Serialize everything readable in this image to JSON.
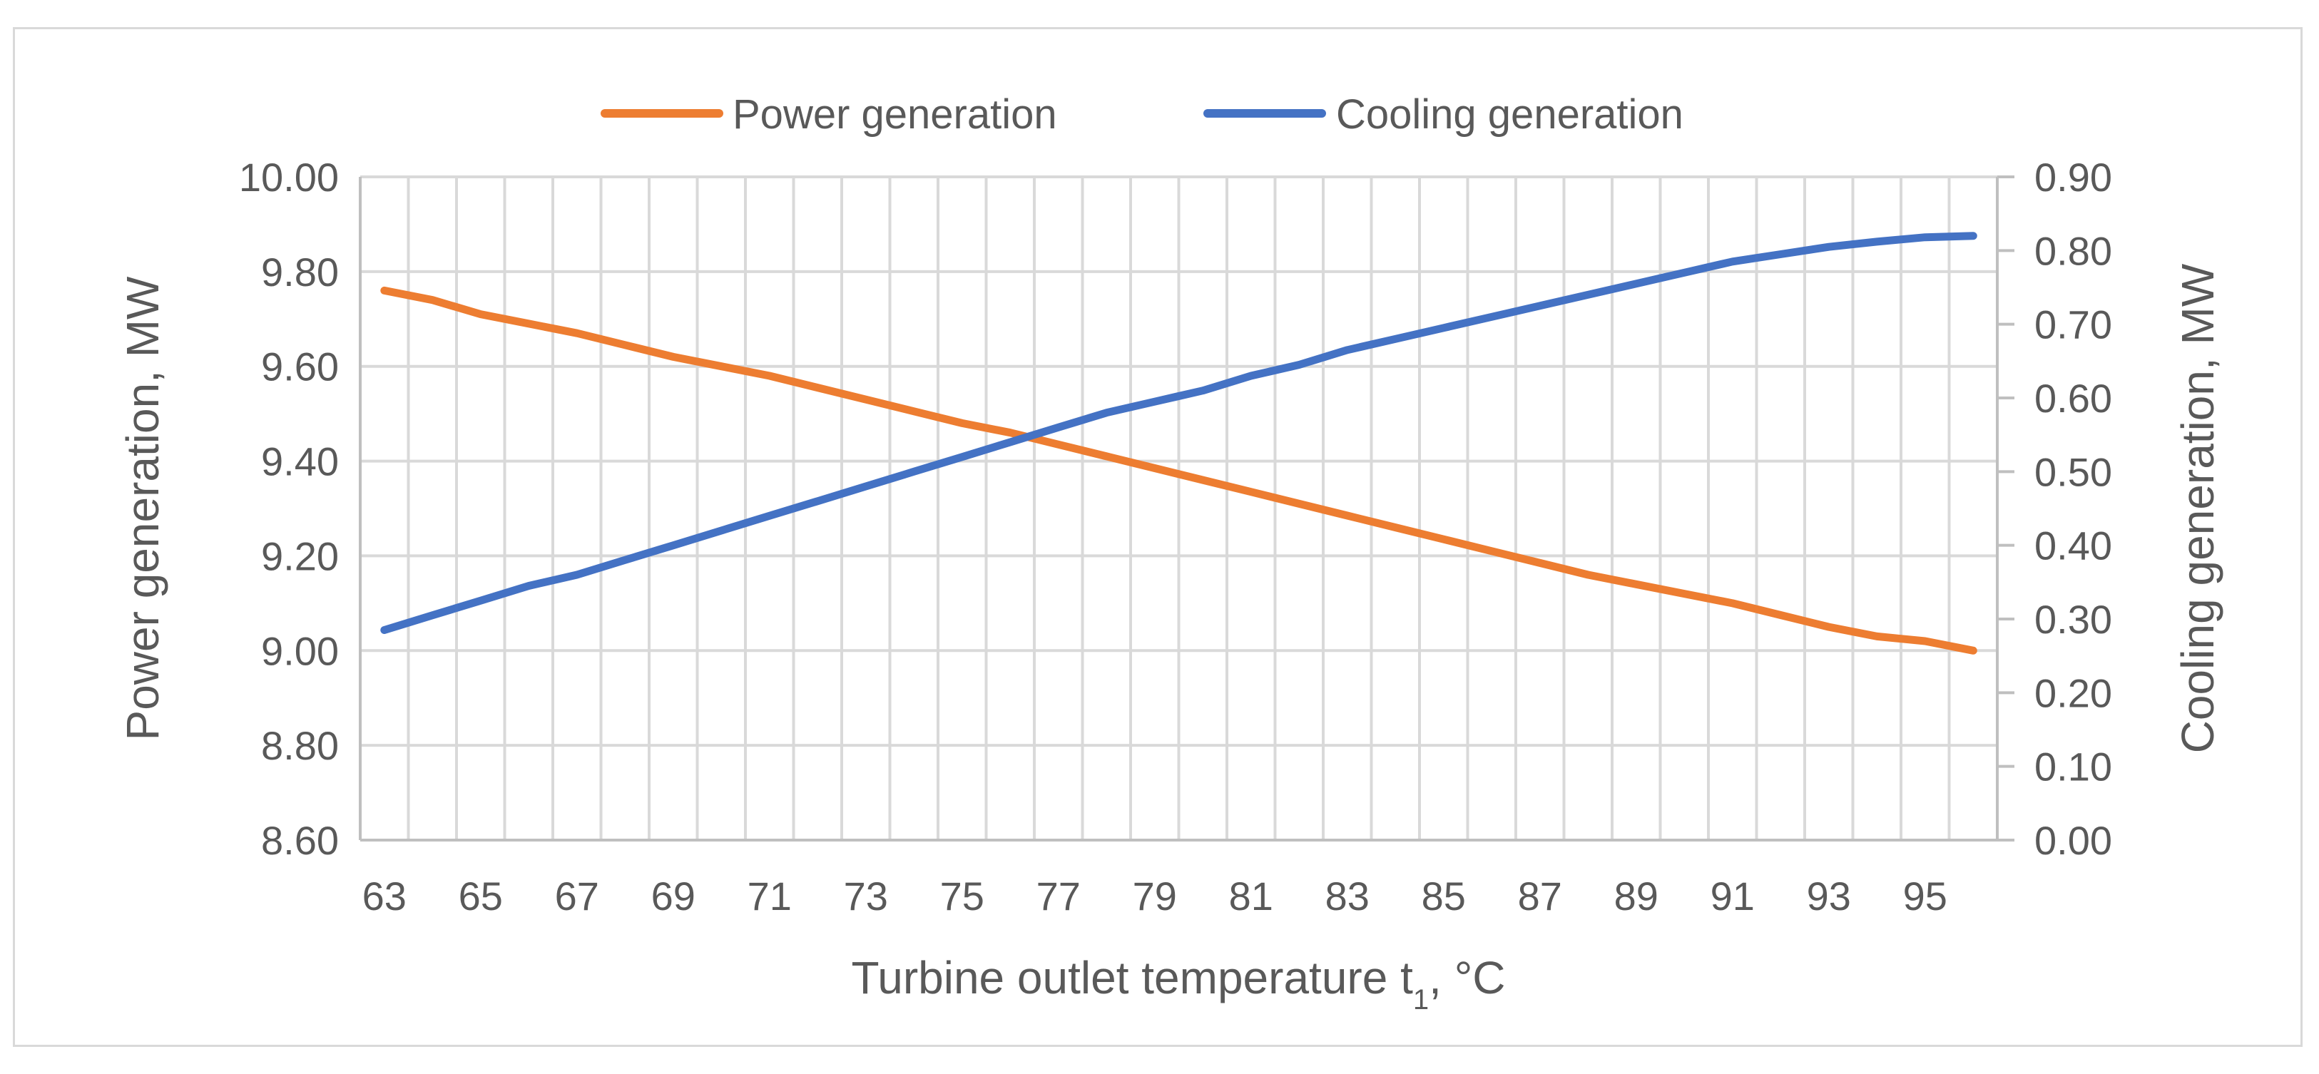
{
  "chart_data": {
    "type": "line",
    "title": "",
    "xlabel": "Turbine outlet temperature t",
    "xlabel_subscript": "1",
    "xlabel_suffix": ", °C",
    "ylabel": "Power generation, MW",
    "y2label": "Cooling generation, MW",
    "xlim": [
      63,
      96
    ],
    "ylim": [
      8.6,
      10.0
    ],
    "y2lim": [
      0.0,
      0.9
    ],
    "grid": true,
    "legend_position": "top-center",
    "x_ticks": [
      "63",
      "65",
      "67",
      "69",
      "71",
      "73",
      "75",
      "77",
      "79",
      "81",
      "83",
      "85",
      "87",
      "89",
      "91",
      "93",
      "95"
    ],
    "y_ticks": [
      "8.60",
      "8.80",
      "9.00",
      "9.20",
      "9.40",
      "9.60",
      "9.80",
      "10.00"
    ],
    "y2_ticks": [
      "0.00",
      "0.10",
      "0.20",
      "0.30",
      "0.40",
      "0.50",
      "0.60",
      "0.70",
      "0.80",
      "0.90"
    ],
    "x": [
      63,
      64,
      65,
      66,
      67,
      68,
      69,
      70,
      71,
      72,
      73,
      74,
      75,
      76,
      77,
      78,
      79,
      80,
      81,
      82,
      83,
      84,
      85,
      86,
      87,
      88,
      89,
      90,
      91,
      92,
      93,
      94,
      95,
      96
    ],
    "series": [
      {
        "name": "Power generation",
        "axis": "left",
        "color": "#ED7D31",
        "values": [
          9.76,
          9.74,
          9.71,
          9.69,
          9.67,
          9.645,
          9.62,
          9.6,
          9.58,
          9.555,
          9.53,
          9.505,
          9.48,
          9.46,
          9.435,
          9.41,
          9.385,
          9.36,
          9.335,
          9.31,
          9.285,
          9.26,
          9.235,
          9.21,
          9.185,
          9.16,
          9.14,
          9.12,
          9.1,
          9.075,
          9.05,
          9.03,
          9.02,
          9.0
        ]
      },
      {
        "name": "Cooling generation",
        "axis": "right",
        "color": "#4472C4",
        "values": [
          0.285,
          0.305,
          0.325,
          0.345,
          0.36,
          0.38,
          0.4,
          0.42,
          0.44,
          0.46,
          0.48,
          0.5,
          0.52,
          0.54,
          0.56,
          0.58,
          0.595,
          0.61,
          0.63,
          0.645,
          0.665,
          0.68,
          0.695,
          0.71,
          0.725,
          0.74,
          0.755,
          0.77,
          0.785,
          0.795,
          0.805,
          0.812,
          0.818,
          0.82
        ]
      }
    ]
  }
}
